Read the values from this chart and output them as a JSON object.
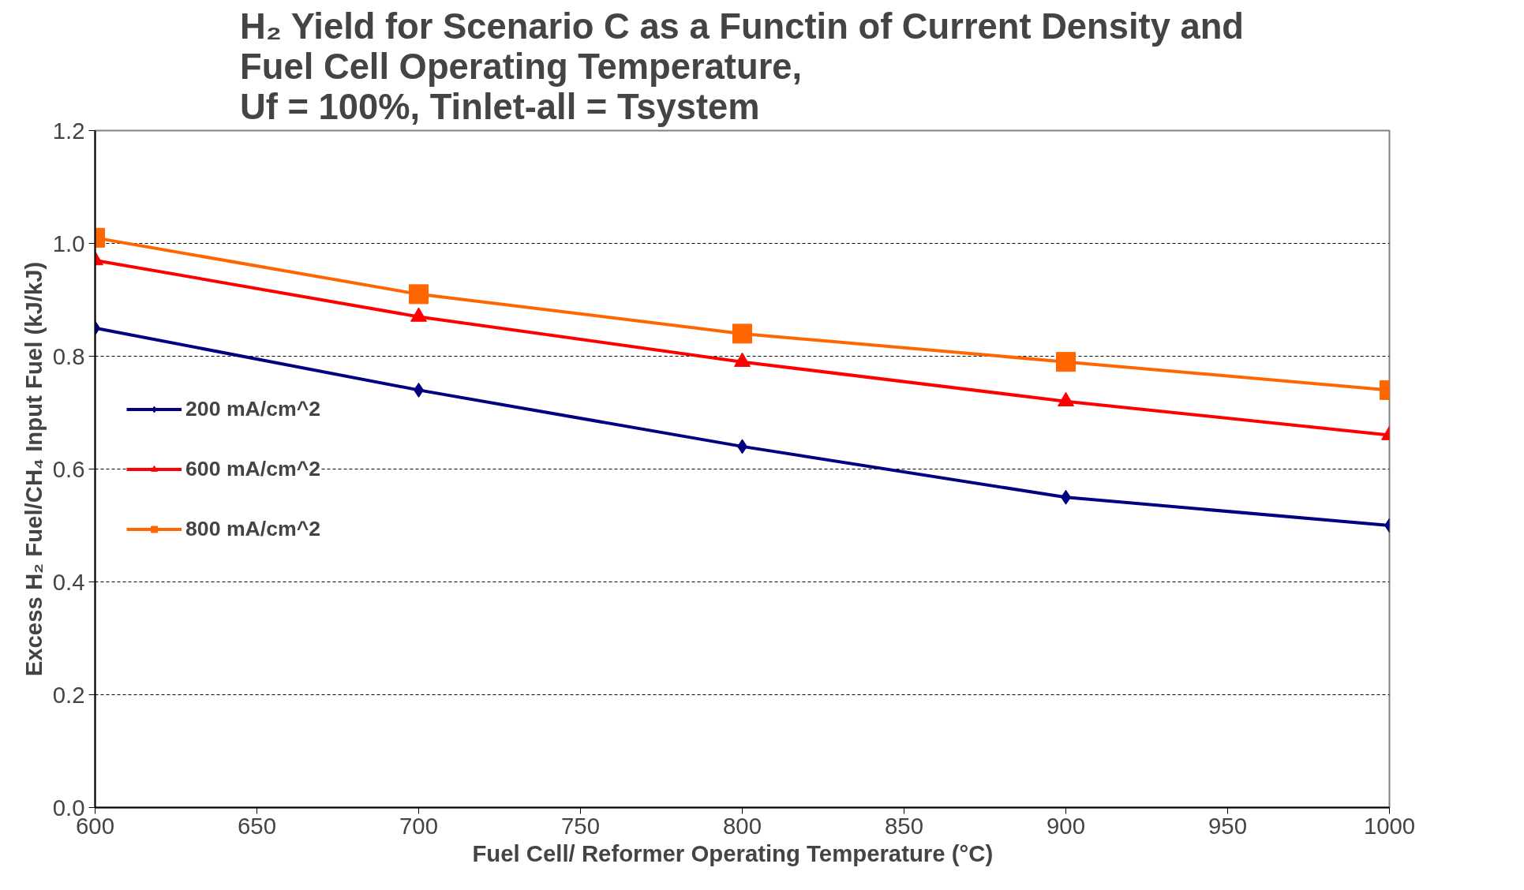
{
  "chart_data": {
    "type": "line",
    "title": "H₂ Yield for Scenario C as a Functin of Current Density and\nFuel Cell Operating Temperature,\nUf = 100%, Tinlet-all = Tsystem",
    "xlabel": "Fuel Cell/ Reformer  Operating  Temperature  (°C)",
    "ylabel": "Excess H₂ Fuel/CH₄ Input Fuel (kJ/kJ)",
    "x": [
      600,
      700,
      800,
      900,
      1000
    ],
    "series": [
      {
        "name": "200 mA/cm^2",
        "color": "#000080",
        "marker": "diamond",
        "values": [
          0.85,
          0.74,
          0.64,
          0.55,
          0.5
        ]
      },
      {
        "name": "600 mA/cm^2",
        "color": "#ff0000",
        "marker": "triangle",
        "values": [
          0.97,
          0.87,
          0.79,
          0.72,
          0.66
        ]
      },
      {
        "name": "800 mA/cm^2",
        "color": "#ff6600",
        "marker": "square",
        "values": [
          1.01,
          0.91,
          0.84,
          0.79,
          0.74
        ]
      }
    ],
    "xlim": [
      600,
      1000
    ],
    "xticks": [
      600,
      650,
      700,
      750,
      800,
      850,
      900,
      950,
      1000
    ],
    "ylim": [
      0,
      1.2
    ],
    "yticks": [
      {
        "value": 0,
        "label": "0.0"
      },
      0.2,
      0.4,
      0.6,
      0.8,
      {
        "value": 1,
        "label": "1.0"
      },
      1.2
    ],
    "grid": "y",
    "legend": "left",
    "line_style": "solid"
  }
}
